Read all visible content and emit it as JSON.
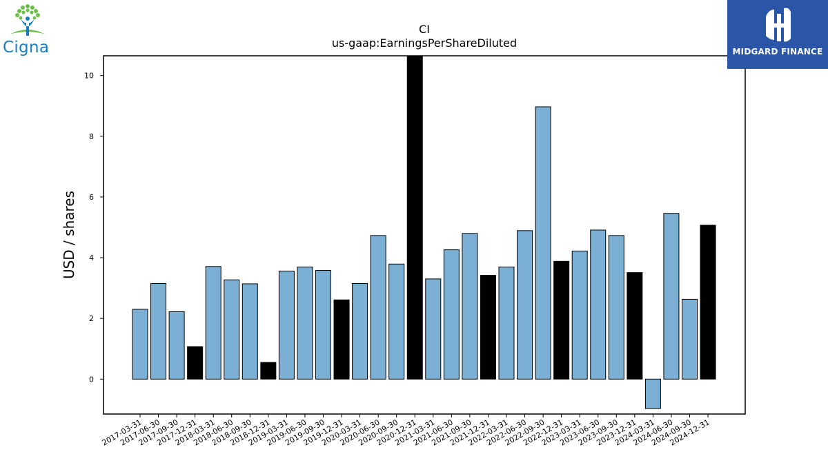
{
  "logos": {
    "left_brand": "Cigna",
    "right_brand": "MIDGARD FINANCE",
    "cigna_green": "#6cc04a",
    "cigna_blue": "#1a7fc1",
    "midgard_blue": "#2b56a8"
  },
  "colors": {
    "bar_default": "#7bafd4",
    "bar_highlight": "#000000",
    "bar_edge": "#000000"
  },
  "chart_data": {
    "type": "bar",
    "title": "CI",
    "subtitle": "us-gaap:EarningsPerShareDiluted",
    "xlabel": "",
    "ylabel": "USD / shares",
    "ylim": [
      -1.15,
      10.65
    ],
    "yticks": [
      0,
      2,
      4,
      6,
      8,
      10
    ],
    "grid": false,
    "legend": "none",
    "categories": [
      "2017-03-31",
      "2017-06-30",
      "2017-09-30",
      "2017-12-31",
      "2018-03-31",
      "2018-06-30",
      "2018-09-30",
      "2018-12-31",
      "2019-03-31",
      "2019-06-30",
      "2019-09-30",
      "2019-12-31",
      "2020-03-31",
      "2020-06-30",
      "2020-09-30",
      "2020-12-31",
      "2021-03-31",
      "2021-06-30",
      "2021-09-30",
      "2021-12-31",
      "2022-03-31",
      "2022-06-30",
      "2022-09-30",
      "2022-12-31",
      "2023-03-31",
      "2023-06-30",
      "2023-09-30",
      "2023-12-31",
      "2024-03-31",
      "2024-06-30",
      "2024-09-30",
      "2024-12-31"
    ],
    "values": [
      2.3,
      3.15,
      2.22,
      1.07,
      3.71,
      3.27,
      3.14,
      0.55,
      3.56,
      3.69,
      3.58,
      2.61,
      3.15,
      4.73,
      3.79,
      10.65,
      3.3,
      4.26,
      4.8,
      3.42,
      3.69,
      4.89,
      8.97,
      3.88,
      4.22,
      4.91,
      4.73,
      3.51,
      -0.97,
      5.46,
      2.63,
      5.07
    ],
    "highlight": [
      false,
      false,
      false,
      true,
      false,
      false,
      false,
      true,
      false,
      false,
      false,
      true,
      false,
      false,
      false,
      true,
      false,
      false,
      false,
      true,
      false,
      false,
      false,
      true,
      false,
      false,
      false,
      true,
      false,
      false,
      false,
      true
    ]
  }
}
